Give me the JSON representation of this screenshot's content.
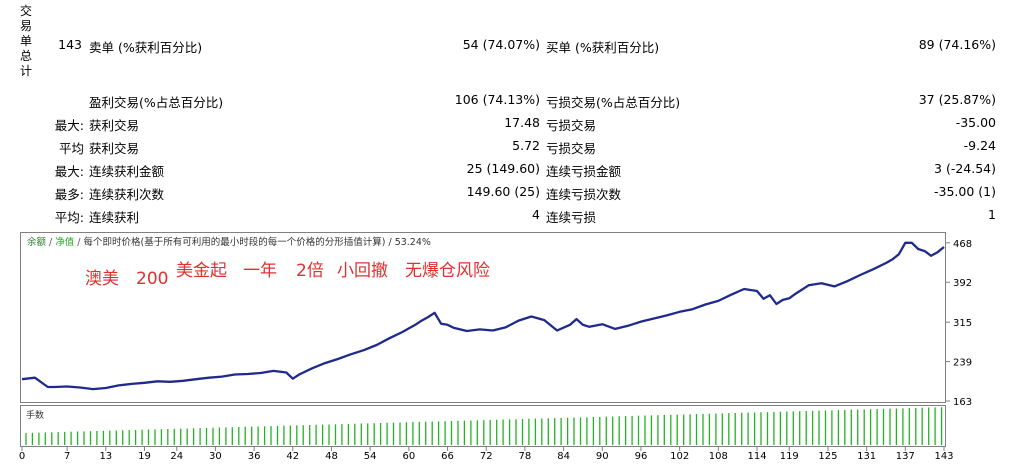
{
  "summary": {
    "vertical_label": [
      "交",
      "易",
      "单",
      "总",
      "计"
    ],
    "total_trades": "143",
    "short_label": "卖单 (%获利百分比)",
    "short_value": "54 (74.07%)",
    "long_label": "买单 (%获利百分比)",
    "long_value": "89 (74.16%)"
  },
  "stats_rows": [
    {
      "prefix": "",
      "left_label": "盈利交易(%占总百分比)",
      "left_value": "106 (74.13%)",
      "right_label": "亏损交易(%占总百分比)",
      "right_value": "37 (25.87%)"
    },
    {
      "prefix": "最大:",
      "left_label": "获利交易",
      "left_value": "17.48",
      "right_label": "亏损交易",
      "right_value": "-35.00"
    },
    {
      "prefix": "平均",
      "left_label": "获利交易",
      "left_value": "5.72",
      "right_label": "亏损交易",
      "right_value": "-9.24"
    },
    {
      "prefix": "最大:",
      "left_label": "连续获利金额",
      "left_value": "25 (149.60)",
      "right_label": "连续亏损金额",
      "right_value": "3 (-24.54)"
    },
    {
      "prefix": "最多:",
      "left_label": "连续获利次数",
      "left_value": "149.60 (25)",
      "right_label": "连续亏损次数",
      "right_value": "-35.00 (1)"
    },
    {
      "prefix": "平均:",
      "left_label": "连续获利",
      "left_value": "4",
      "right_label": "连续亏损",
      "right_value": "1"
    }
  ],
  "chart_header": {
    "balance": "余额",
    "equity": "净值",
    "sep": " / ",
    "mode": "每个即时价格(基于所有可利用的最小时段的每一个价格的分形插值计算)",
    "pct": " / 53.24%"
  },
  "annotation_parts": [
    "澳美",
    "200",
    "美金起",
    "一年",
    "2倍",
    "小回撤",
    "无爆仓风险"
  ],
  "volume_label": "手数",
  "colors": {
    "line": "#1f2a8c",
    "volume": "#22b422",
    "balance_text": "#2a7d2a",
    "annotation": "#e03030"
  },
  "chart_data": {
    "type": "line",
    "ytick_labels": [
      "468",
      "392",
      "315",
      "239",
      "163"
    ],
    "xtick_labels": [
      "0",
      "7",
      "13",
      "19",
      "24",
      "30",
      "36",
      "42",
      "48",
      "54",
      "60",
      "66",
      "72",
      "78",
      "84",
      "90",
      "96",
      "102",
      "108",
      "114",
      "119",
      "125",
      "131",
      "137",
      "143"
    ],
    "ylim": [
      163,
      485
    ],
    "x": [
      0,
      2,
      4,
      5,
      7,
      9,
      11,
      13,
      15,
      17,
      19,
      21,
      23,
      25,
      27,
      29,
      31,
      33,
      35,
      37,
      39,
      41,
      42,
      43,
      45,
      47,
      49,
      51,
      53,
      55,
      57,
      59,
      61,
      62,
      63,
      64,
      65,
      66,
      67,
      69,
      71,
      73,
      75,
      77,
      79,
      81,
      83,
      85,
      86,
      87,
      88,
      90,
      92,
      94,
      96,
      98,
      100,
      102,
      104,
      106,
      108,
      110,
      112,
      114,
      115,
      116,
      117,
      118,
      119,
      120,
      121,
      122,
      124,
      126,
      128,
      130,
      132,
      134,
      135,
      136,
      137,
      138,
      139,
      140,
      141,
      142,
      143
    ],
    "y": [
      205,
      208,
      190,
      190,
      191,
      189,
      186,
      188,
      193,
      196,
      198,
      201,
      200,
      202,
      205,
      208,
      210,
      214,
      215,
      217,
      221,
      218,
      206,
      214,
      226,
      236,
      244,
      253,
      261,
      271,
      284,
      296,
      310,
      318,
      325,
      333,
      312,
      310,
      304,
      298,
      301,
      299,
      305,
      318,
      326,
      319,
      299,
      310,
      321,
      310,
      306,
      311,
      302,
      308,
      316,
      322,
      328,
      335,
      340,
      349,
      356,
      368,
      379,
      375,
      360,
      367,
      350,
      358,
      361,
      370,
      378,
      386,
      390,
      384,
      394,
      406,
      417,
      429,
      436,
      446,
      468,
      468,
      456,
      452,
      443,
      450,
      460
    ]
  }
}
